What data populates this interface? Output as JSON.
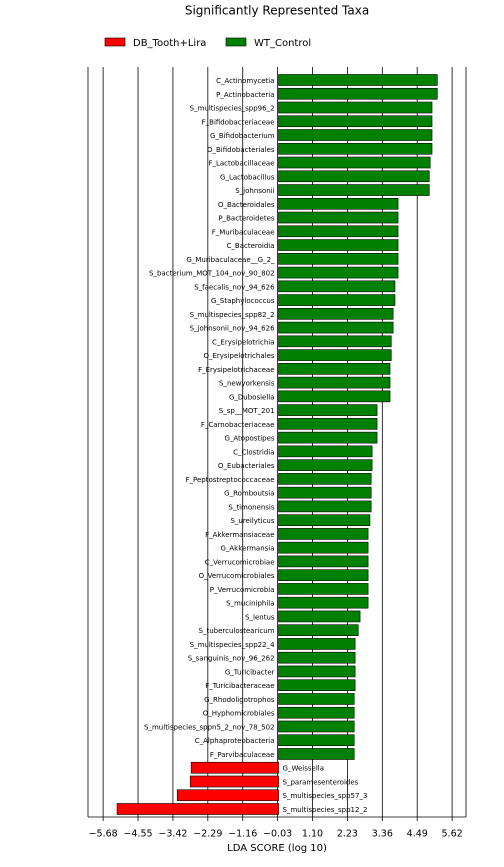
{
  "chart_data": {
    "type": "hbar",
    "title": "Significantly Represented Taxa",
    "x_label": "LDA SCORE (log 10)",
    "categories": [
      "C_Actinomycetia",
      "P_Actinobacteria",
      "S_multispecies_spp96_2",
      "F_Bifidobacteriaceae",
      "G_Bifidobacterium",
      "O_Bifidobacteriales",
      "F_Lactobacillaceae",
      "G_Lactobacillus",
      "S_johnsonii",
      "O_Bacteroidales",
      "P_Bacteroidetes",
      "F_Muribaculaceae",
      "C_Bacteroidia",
      "G_Muribaculaceae__G_2_",
      "S_bacterium_MOT_104_nov_90_802",
      "S_faecalis_nov_94_626",
      "G_Staphylococcus",
      "S_multispecies_spp82_2",
      "S_johnsonii_nov_94_626",
      "C_Erysipelotrichia",
      "O_Erysipelotrichales",
      "F_Erysipelotrichaceae",
      "S_newyorkensis",
      "G_Dubosiella",
      "S_sp__MOT_201",
      "F_Carnobacteriaceae",
      "G_Atopostipes",
      "C_Clostridia",
      "O_Eubacteriales",
      "F_Peptostreptococcaceae",
      "G_Romboutsia",
      "S_timonensis",
      "S_ureilyticus",
      "F_Akkermansiaceae",
      "G_Akkermansia",
      "C_Verrucomicrobiae",
      "O_Verrucomicrobiales",
      "P_Verrucomicrobia",
      "S_muciniphila",
      "S_lentus",
      "S_tuberculostearicum",
      "S_multispecies_spp22_4",
      "S_sanguinis_nov_96_262",
      "G_Turicibacter",
      "F_Turicibacteraceae",
      "G_Rhodoligotrophos",
      "O_Hyphomicrobiales",
      "S_multispecies_sppn5_2_nov_78_502",
      "C_Alphaproteobacteria",
      "F_Parvibaculaceae",
      "G_Weissella",
      "S_paramesenteroides",
      "S_multispecies_spp57_3",
      "S_multispecies_spp12_2"
    ],
    "series": [
      {
        "name": "DB_Tooth+Lira",
        "color": "#ff0000",
        "values": [
          null,
          null,
          null,
          null,
          null,
          null,
          null,
          null,
          null,
          null,
          null,
          null,
          null,
          null,
          null,
          null,
          null,
          null,
          null,
          null,
          null,
          null,
          null,
          null,
          null,
          null,
          null,
          null,
          null,
          null,
          null,
          null,
          null,
          null,
          null,
          null,
          null,
          null,
          null,
          null,
          null,
          null,
          null,
          null,
          null,
          null,
          null,
          null,
          null,
          null,
          -2.83,
          -2.86,
          -3.28,
          -5.23
        ]
      },
      {
        "name": "WT_Control",
        "color": "#008000",
        "values": [
          5.14,
          5.14,
          4.97,
          4.97,
          4.97,
          4.97,
          4.91,
          4.88,
          4.88,
          3.87,
          3.87,
          3.87,
          3.87,
          3.87,
          3.87,
          3.77,
          3.77,
          3.71,
          3.71,
          3.65,
          3.65,
          3.61,
          3.61,
          3.61,
          3.19,
          3.19,
          3.19,
          3.03,
          3.03,
          3.0,
          3.0,
          3.0,
          2.96,
          2.9,
          2.9,
          2.9,
          2.9,
          2.9,
          2.9,
          2.64,
          2.58,
          2.48,
          2.48,
          2.48,
          2.48,
          2.45,
          2.45,
          2.45,
          2.45,
          2.45,
          null,
          null,
          null,
          null
        ]
      }
    ],
    "xlim": [
      -6.17,
      6.07
    ],
    "xticks": [
      {
        "value": -5.68,
        "label": "−5.68"
      },
      {
        "value": -4.55,
        "label": "−4.55"
      },
      {
        "value": -3.42,
        "label": "−3.42"
      },
      {
        "value": -2.29,
        "label": "−2.29"
      },
      {
        "value": -1.16,
        "label": "−1.16"
      },
      {
        "value": -0.03,
        "label": "−0.03"
      },
      {
        "value": 1.1,
        "label": "1.10"
      },
      2.23,
      3.36,
      4.49,
      5.62
    ],
    "grid": true
  }
}
